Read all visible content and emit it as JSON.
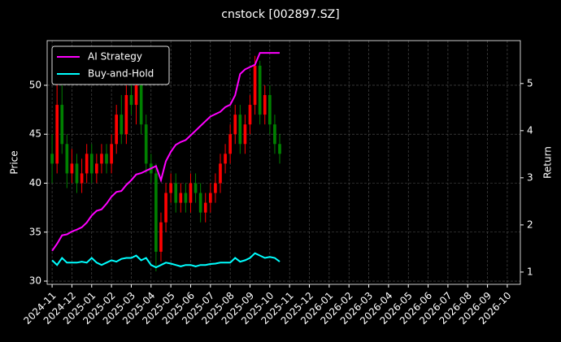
{
  "chart_data": {
    "type": "candlestick",
    "title": "cnstock [002897.SZ]",
    "ylabel": "Price",
    "y2label": "Return",
    "x": [
      0,
      0.25,
      0.5,
      0.75,
      1,
      1.25,
      1.5,
      1.75,
      2,
      2.25,
      2.5,
      2.75,
      3,
      3.25,
      3.5,
      3.75,
      4,
      4.25,
      4.5,
      4.75,
      5,
      5.25,
      5.5,
      5.75,
      6,
      6.25,
      6.5,
      6.75,
      7,
      7.25,
      7.5,
      7.75,
      8,
      8.25,
      8.5,
      8.75,
      9,
      9.25,
      9.5,
      9.75,
      10,
      10.25,
      10.5,
      10.75,
      11,
      11.25,
      11.5
    ],
    "open": [
      43,
      42,
      48,
      44,
      41,
      42,
      40,
      41,
      43,
      41,
      42,
      43,
      42,
      44,
      47,
      45,
      49,
      48,
      50,
      46,
      42,
      41,
      33,
      36,
      39,
      40,
      38,
      39,
      38,
      40,
      39,
      37,
      38,
      39,
      40,
      42,
      43,
      45,
      47,
      44,
      46,
      48,
      52,
      47,
      49,
      46,
      44
    ],
    "high": [
      45,
      50.5,
      50,
      45,
      43.5,
      43,
      42.5,
      44,
      44,
      43,
      44,
      44,
      45,
      48,
      49,
      50,
      51,
      51,
      50.5,
      47,
      43,
      42,
      37,
      40,
      41,
      41,
      40,
      40,
      41,
      41,
      40,
      39,
      40,
      41,
      43,
      44,
      46,
      48,
      48,
      47,
      49,
      53,
      52.5,
      50,
      50,
      47,
      45
    ],
    "low": [
      40,
      41,
      43,
      39.5,
      40,
      39,
      39,
      40,
      40,
      40,
      41,
      41,
      41,
      43,
      44,
      44,
      47,
      46,
      45,
      41,
      40,
      31,
      32,
      35,
      38,
      37,
      37,
      37,
      37,
      38,
      36,
      36,
      37,
      38,
      39,
      41,
      42,
      44,
      43,
      43,
      45,
      47,
      46,
      46,
      45,
      43,
      42
    ],
    "close": [
      42,
      48,
      44,
      41,
      42,
      40,
      41,
      43,
      41,
      42,
      43,
      42,
      44,
      47,
      45,
      49,
      48,
      50,
      46,
      42,
      41,
      33,
      36,
      39,
      40,
      38,
      39,
      38,
      40,
      39,
      37,
      38,
      39,
      40,
      42,
      43,
      45,
      47,
      44,
      46,
      48,
      52,
      47,
      49,
      46,
      44,
      43
    ],
    "up_color": "#ff0000",
    "down_color": "#008000",
    "series": [
      {
        "name": "AI Strategy",
        "color": "#ff00ff",
        "axis": "y2",
        "values": [
          1.45,
          1.6,
          1.78,
          1.8,
          1.86,
          1.9,
          1.95,
          2.05,
          2.2,
          2.3,
          2.33,
          2.45,
          2.6,
          2.7,
          2.72,
          2.85,
          2.95,
          3.07,
          3.1,
          3.15,
          3.2,
          3.25,
          2.95,
          3.35,
          3.55,
          3.7,
          3.76,
          3.8,
          3.9,
          4.0,
          4.1,
          4.2,
          4.3,
          4.35,
          4.4,
          4.5,
          4.55,
          4.75,
          5.2,
          5.3,
          5.35,
          5.4,
          5.65,
          5.65,
          5.65,
          5.65,
          5.65
        ]
      },
      {
        "name": "Buy-and-Hold",
        "color": "#00ffff",
        "axis": "y2",
        "values": [
          1.25,
          1.15,
          1.3,
          1.2,
          1.2,
          1.2,
          1.22,
          1.2,
          1.3,
          1.2,
          1.15,
          1.2,
          1.25,
          1.22,
          1.28,
          1.3,
          1.3,
          1.35,
          1.25,
          1.3,
          1.15,
          1.1,
          1.15,
          1.2,
          1.18,
          1.15,
          1.12,
          1.15,
          1.15,
          1.12,
          1.15,
          1.15,
          1.17,
          1.18,
          1.2,
          1.2,
          1.2,
          1.3,
          1.22,
          1.25,
          1.3,
          1.4,
          1.35,
          1.3,
          1.32,
          1.3,
          1.22
        ]
      }
    ],
    "xlim": [
      -0.25,
      23.66
    ],
    "xticks": [
      {
        "value": 0,
        "label": "2024-11"
      },
      {
        "value": 1,
        "label": "2024-12"
      },
      {
        "value": 2,
        "label": "2025-01"
      },
      {
        "value": 3,
        "label": "2025-02"
      },
      {
        "value": 4,
        "label": "2025-03"
      },
      {
        "value": 5,
        "label": "2025-04"
      },
      {
        "value": 6,
        "label": "2025-05"
      },
      {
        "value": 7,
        "label": "2025-06"
      },
      {
        "value": 8,
        "label": "2025-07"
      },
      {
        "value": 9,
        "label": "2025-08"
      },
      {
        "value": 10,
        "label": "2025-09"
      },
      {
        "value": 11,
        "label": "2025-10"
      },
      {
        "value": 12,
        "label": "2025-11"
      },
      {
        "value": 13,
        "label": "2025-12"
      },
      {
        "value": 14,
        "label": "2026-01"
      },
      {
        "value": 15,
        "label": "2026-02"
      },
      {
        "value": 16,
        "label": "2026-03"
      },
      {
        "value": 17,
        "label": "2026-04"
      },
      {
        "value": 18,
        "label": "2026-05"
      },
      {
        "value": 19,
        "label": "2026-06"
      },
      {
        "value": 20,
        "label": "2026-07"
      },
      {
        "value": 21,
        "label": "2026-08"
      },
      {
        "value": 22,
        "label": "2026-09"
      },
      {
        "value": 23,
        "label": "2026-10"
      }
    ],
    "ylim": [
      29.67,
      54.56
    ],
    "yticks": [
      30,
      35,
      40,
      45,
      50
    ],
    "y2lim": [
      0.74,
      5.91
    ],
    "y2ticks": [
      1,
      2,
      3,
      4,
      5
    ],
    "grid": true,
    "legend": "upper left"
  }
}
